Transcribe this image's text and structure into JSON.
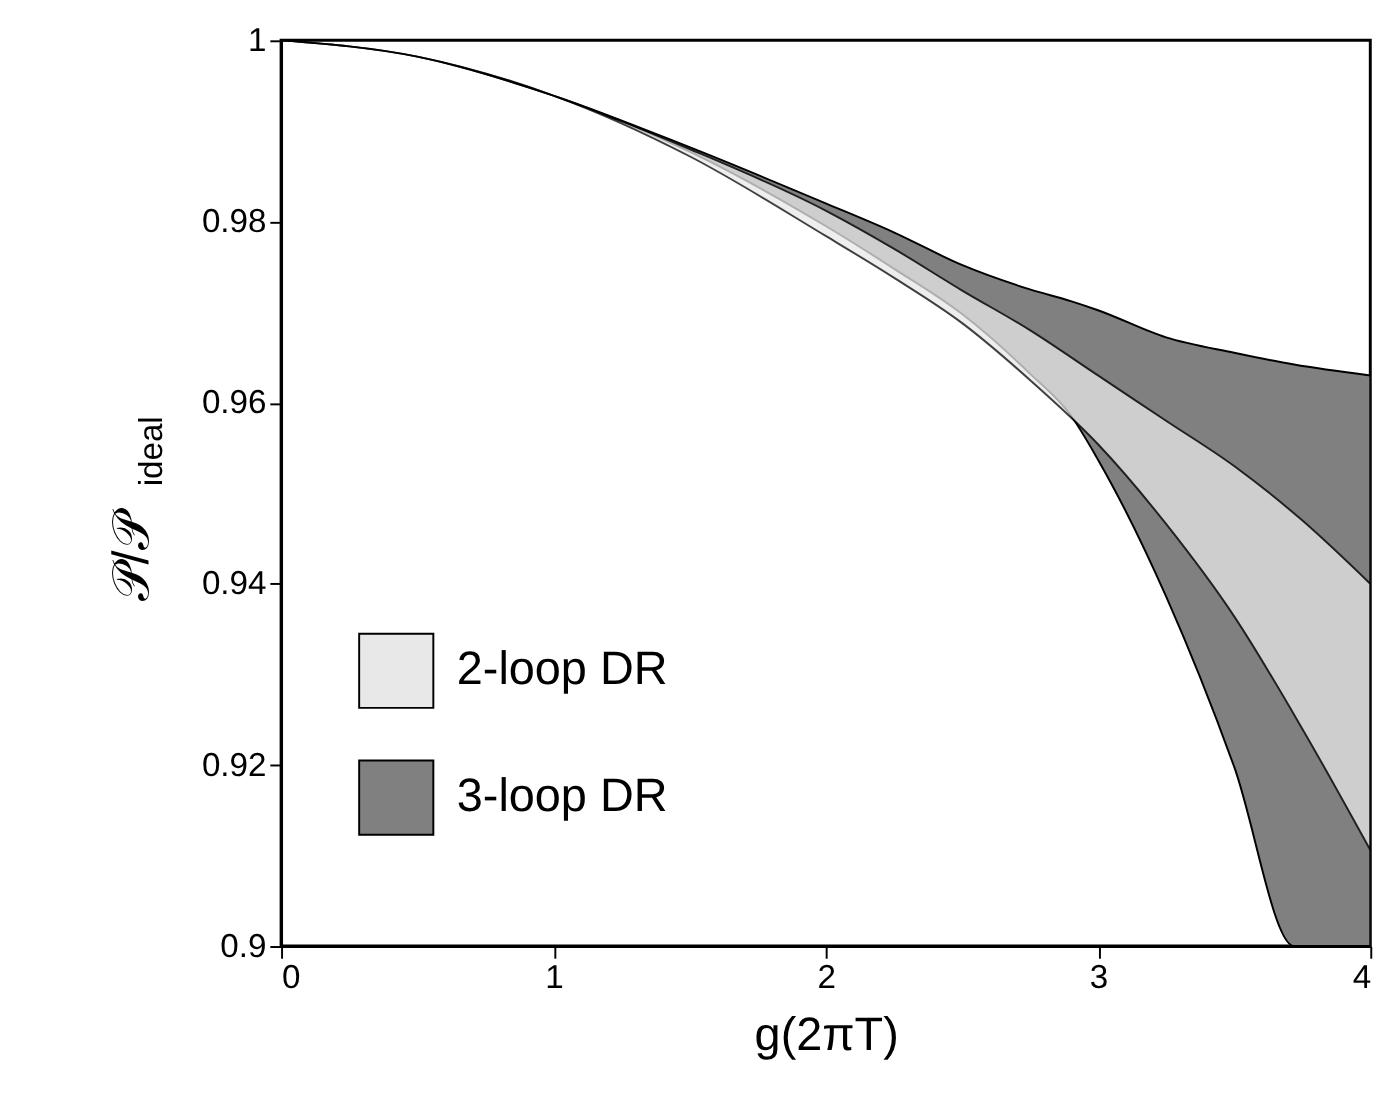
{
  "chart_data": {
    "type": "area",
    "xlabel": "g(2πT)",
    "ylabel": "𝒫/𝒫$_{ideal}$",
    "xlim": [
      0,
      4
    ],
    "ylim": [
      0.9,
      1
    ],
    "xticks": [
      0,
      1,
      2,
      3,
      4
    ],
    "yticks": [
      0.9,
      0.92,
      0.94,
      0.96,
      0.98,
      1
    ],
    "grid": false,
    "legend": "bottom left",
    "series": [
      {
        "name": "2-loop DR",
        "color": "#e8e8e8",
        "x": [
          0,
          0.5,
          1,
          1.5,
          2,
          2.25,
          2.5,
          2.75,
          3,
          3.25,
          3.5,
          3.75,
          4
        ],
        "values": [
          null,
          null,
          null,
          null,
          null,
          null,
          null,
          null,
          null,
          null,
          null,
          null,
          null
        ],
        "upper": [
          1,
          0.9982,
          0.9939,
          0.988,
          0.9812,
          0.977,
          0.9724,
          0.968,
          0.963,
          0.958,
          0.953,
          0.947,
          0.94
        ],
        "lower": [
          1,
          0.9982,
          0.9939,
          0.9872,
          0.9784,
          0.9738,
          0.9688,
          0.9625,
          0.9554,
          0.9466,
          0.9364,
          0.924,
          0.9106
        ]
      },
      {
        "name": "3-loop DR",
        "color": "#808080",
        "x": [
          0,
          0.5,
          1,
          1.5,
          2,
          2.25,
          2.5,
          2.75,
          2.9,
          3,
          3.25,
          3.5,
          3.72,
          4
        ],
        "values": [
          null,
          null,
          null,
          null,
          null,
          null,
          null,
          null,
          null,
          null,
          null,
          null,
          null,
          null
        ],
        "upper": [
          1,
          0.9982,
          0.9939,
          0.9882,
          0.982,
          0.9788,
          0.9752,
          0.9725,
          0.9712,
          0.9702,
          0.9672,
          0.9655,
          0.9642,
          0.963
        ],
        "lower": [
          1,
          0.9982,
          0.9939,
          0.9877,
          0.9795,
          0.9748,
          0.9698,
          0.9632,
          0.9586,
          0.9537,
          0.9386,
          0.9198,
          0.9,
          0.9
        ]
      }
    ]
  }
}
